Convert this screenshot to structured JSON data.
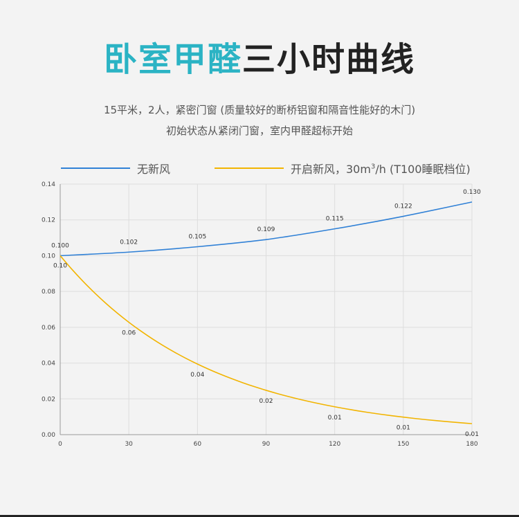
{
  "header": {
    "title_accent": "卧室甲醛",
    "title_rest": "三小时曲线",
    "subtitle_line1": "15平米，2人，紧密门窗 (质量较好的断桥铝窗和隔音性能好的木门)",
    "subtitle_line2": "初始状态从紧闭门窗，室内甲醛超标开始"
  },
  "legend": {
    "series_a": "无新风",
    "series_b_pre": "开启新风，30m",
    "series_b_sup": "3",
    "series_b_post": "/h (T100睡眠档位)"
  },
  "colors": {
    "series_a": "#2f80d6",
    "series_b": "#f2b400",
    "grid": "#dddddd",
    "axis_text": "#444444",
    "title_accent": "#2bb3c4"
  },
  "chart_data": {
    "type": "line",
    "title": "卧室甲醛三小时曲线",
    "xlabel": "",
    "ylabel": "",
    "x": [
      0,
      30,
      60,
      90,
      120,
      150,
      180
    ],
    "xlim": [
      0,
      180
    ],
    "ylim": [
      0,
      0.14
    ],
    "xticks": [
      "0",
      "30",
      "60",
      "90",
      "120",
      "150",
      "180"
    ],
    "yticks": [
      "0.00",
      "0.02",
      "0.04",
      "0.06",
      "0.08",
      "0.10",
      "0.12",
      "0.14"
    ],
    "grid": true,
    "legend_position": "top",
    "series": [
      {
        "name": "无新风",
        "values": [
          0.1,
          0.102,
          0.105,
          0.109,
          0.115,
          0.122,
          0.13
        ],
        "labels": [
          "0.100",
          "0.102",
          "0.105",
          "0.109",
          "0.115",
          "0.122",
          "0.130"
        ]
      },
      {
        "name": "开启新风，30m³/h (T100睡眠档位)",
        "values": [
          0.1,
          0.06,
          0.04,
          0.02,
          0.01,
          0.01,
          0.01
        ],
        "labels": [
          "0.10",
          "0.06",
          "0.04",
          "0.02",
          "0.01",
          "0.01",
          "0.01"
        ]
      }
    ]
  }
}
